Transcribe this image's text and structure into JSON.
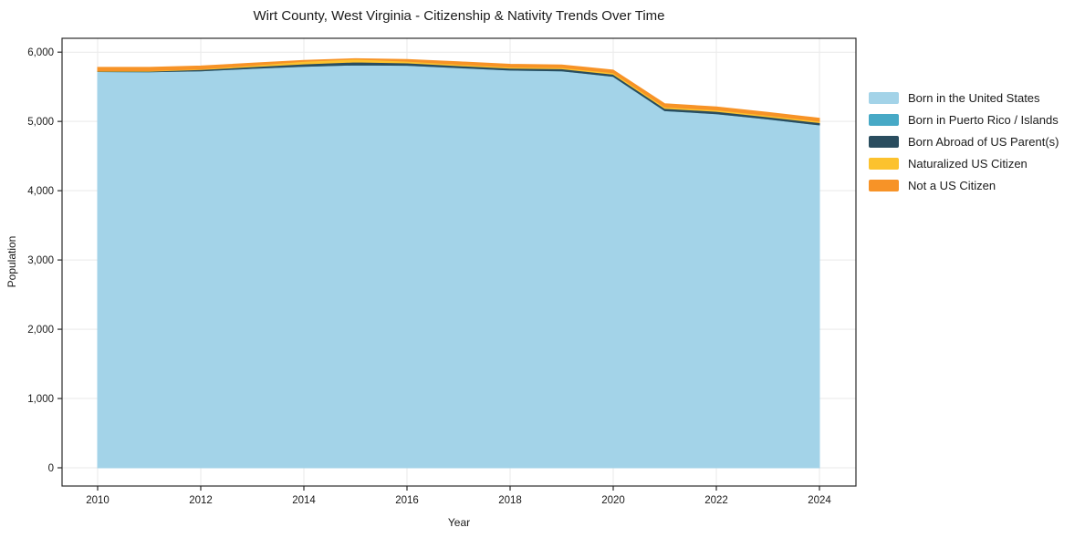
{
  "chart_data": {
    "type": "area",
    "stacked": true,
    "title": "Wirt County, West Virginia - Citizenship & Nativity Trends Over Time",
    "xlabel": "Year",
    "ylabel": "Population",
    "x": [
      2010,
      2011,
      2012,
      2013,
      2014,
      2015,
      2016,
      2017,
      2018,
      2019,
      2020,
      2021,
      2022,
      2023,
      2024
    ],
    "xticks": [
      2010,
      2012,
      2014,
      2016,
      2018,
      2020,
      2022,
      2024
    ],
    "yticks": [
      0,
      1000,
      2000,
      3000,
      4000,
      5000,
      6000
    ],
    "xlim": [
      2009.31,
      2024.7
    ],
    "ylim": [
      0,
      6200
    ],
    "grid": true,
    "legend_position": "right",
    "series": [
      {
        "name": "Born in the United States",
        "color": "#a3d3e8",
        "values": [
          5720,
          5715,
          5730,
          5765,
          5795,
          5815,
          5810,
          5775,
          5740,
          5730,
          5650,
          5155,
          5112,
          5035,
          4950
        ]
      },
      {
        "name": "Born in Puerto Rico / Islands",
        "color": "#47a9c6",
        "values": [
          0,
          0,
          0,
          0,
          0,
          0,
          0,
          0,
          0,
          0,
          0,
          0,
          0,
          0,
          0
        ]
      },
      {
        "name": "Born Abroad of US Parent(s)",
        "color": "#2a4d5f",
        "values": [
          5,
          10,
          18,
          25,
          35,
          43,
          35,
          30,
          28,
          30,
          32,
          33,
          33,
          32,
          32
        ]
      },
      {
        "name": "Naturalized US Citizen",
        "color": "#fcc22e",
        "values": [
          5,
          8,
          10,
          20,
          38,
          42,
          25,
          20,
          17,
          18,
          20,
          22,
          22,
          21,
          21
        ]
      },
      {
        "name": "Not a US Citizen",
        "color": "#f79327",
        "values": [
          50,
          47,
          42,
          30,
          12,
          5,
          25,
          35,
          40,
          37,
          38,
          45,
          43,
          42,
          42
        ]
      }
    ],
    "colors": {
      "spine": "#2b2b2b",
      "grid": "#e9e9e9",
      "tick_text": "#1a1a1a",
      "background": "#ffffff"
    }
  }
}
